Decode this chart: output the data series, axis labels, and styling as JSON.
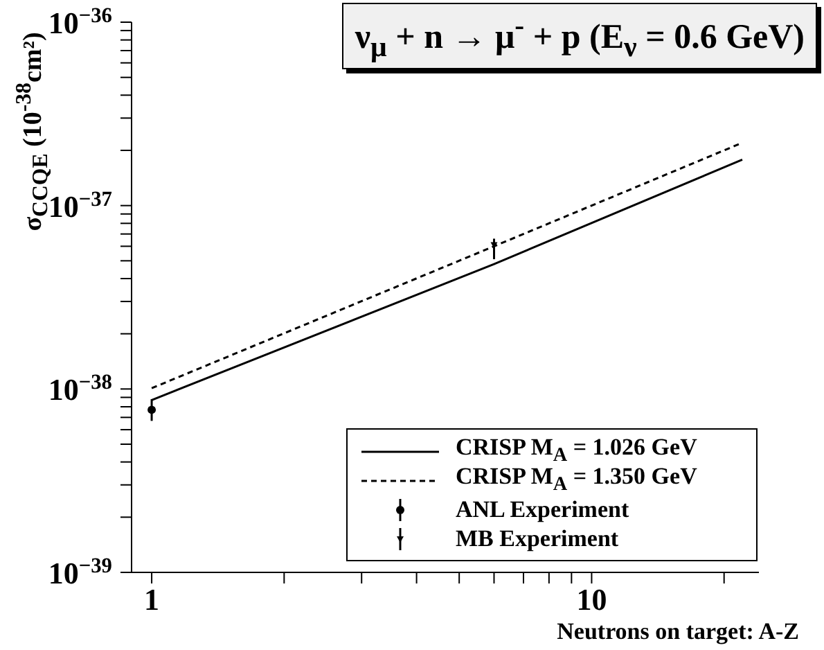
{
  "chart_data": {
    "type": "line",
    "title": "ν$_{μ}$ + n → μ$^{-}$ + p (E$_{ν}$ = 0.6 GeV)",
    "xlabel": "Neutrons on target: A-Z",
    "ylabel": "σ$_{CCQE}$ (10$^{-38}$cm²)",
    "log": "xy",
    "grid": false,
    "legend": "bottom right",
    "xlim": [
      0.9,
      24
    ],
    "ylim": [
      1e-39,
      1e-36
    ],
    "xticks": [
      1,
      {
        "value": 2,
        "label": null
      },
      {
        "value": 3,
        "label": null
      },
      {
        "value": 4,
        "label": null
      },
      {
        "value": 5,
        "label": null
      },
      {
        "value": 6,
        "label": null
      },
      {
        "value": 7,
        "label": null
      },
      {
        "value": 8,
        "label": null
      },
      {
        "value": 9,
        "label": null
      },
      10,
      {
        "value": 20,
        "label": null
      }
    ],
    "yticks": [
      {
        "value": 1e-39,
        "label": "10$^{−39}$"
      },
      {
        "value": 2e-39,
        "label": null
      },
      {
        "value": 3e-39,
        "label": null
      },
      {
        "value": 4e-39,
        "label": null
      },
      {
        "value": 5e-39,
        "label": null
      },
      {
        "value": 6e-39,
        "label": null
      },
      {
        "value": 7e-39,
        "label": null
      },
      {
        "value": 8e-39,
        "label": null
      },
      {
        "value": 9e-39,
        "label": null
      },
      {
        "value": 1e-38,
        "label": "10$^{−38}$"
      },
      {
        "value": 2e-38,
        "label": null
      },
      {
        "value": 3e-38,
        "label": null
      },
      {
        "value": 4e-38,
        "label": null
      },
      {
        "value": 5e-38,
        "label": null
      },
      {
        "value": 6e-38,
        "label": null
      },
      {
        "value": 7e-38,
        "label": null
      },
      {
        "value": 8e-38,
        "label": null
      },
      {
        "value": 9e-38,
        "label": null
      },
      {
        "value": 1e-37,
        "label": "10$^{−37}$"
      },
      {
        "value": 2e-37,
        "label": null
      },
      {
        "value": 3e-37,
        "label": null
      },
      {
        "value": 4e-37,
        "label": null
      },
      {
        "value": 5e-37,
        "label": null
      },
      {
        "value": 6e-37,
        "label": null
      },
      {
        "value": 7e-37,
        "label": null
      },
      {
        "value": 8e-37,
        "label": null
      },
      {
        "value": 9e-37,
        "label": null
      },
      {
        "value": 1e-36,
        "label": "10$^{−36}$"
      }
    ],
    "series": [
      {
        "name": "CRISP M$_{A}$ = 1.026 GeV",
        "color": "#000000",
        "line_style": "solid",
        "x": [
          1,
          6,
          22
        ],
        "values": [
          8.7e-39,
          4.8e-38,
          1.78e-37
        ]
      },
      {
        "name": "CRISP M$_{A}$ = 1.350 GeV",
        "color": "#000000",
        "line_style": "dashed",
        "x": [
          1,
          6,
          22
        ],
        "values": [
          1.01e-38,
          6e-38,
          2.2e-37
        ]
      },
      {
        "name": "ANL Experiment",
        "type": "scatter",
        "color": "#000000",
        "marker": "circle",
        "x": [
          1
        ],
        "values": [
          7.7e-39
        ],
        "errors": [
          [
            6.7e-39,
            8.8e-39
          ]
        ]
      },
      {
        "name": "MB Experiment",
        "type": "scatter",
        "color": "#000000",
        "marker": "triangle",
        "x": [
          6
        ],
        "values": [
          6.1e-38
        ],
        "errors": [
          [
            5.1e-38,
            6.6e-38
          ]
        ]
      }
    ]
  }
}
